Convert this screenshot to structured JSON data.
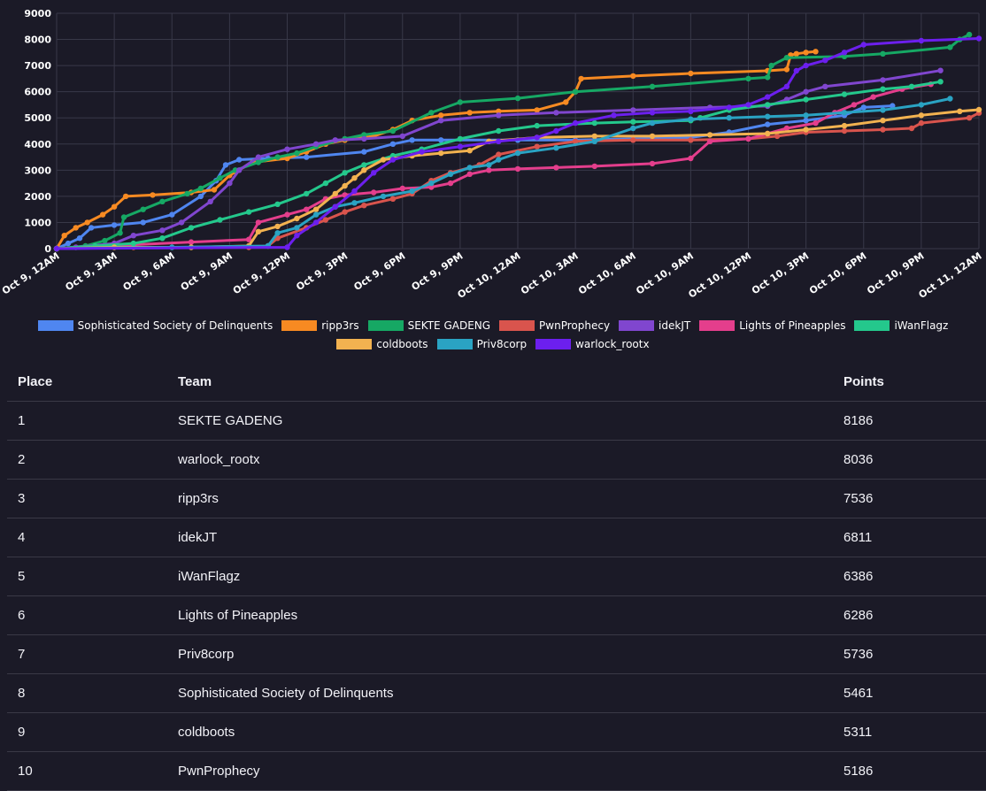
{
  "chart_data": {
    "type": "line",
    "ylim": [
      0,
      9000
    ],
    "yticks": [
      0,
      1000,
      2000,
      3000,
      4000,
      5000,
      6000,
      7000,
      8000,
      9000
    ],
    "xlim": [
      0,
      48
    ],
    "x_unit": "hours since Oct 9, 12AM",
    "xtick_labels": [
      "Oct 9, 12AM",
      "Oct 9, 3AM",
      "Oct 9, 6AM",
      "Oct 9, 9AM",
      "Oct 9, 12PM",
      "Oct 9, 3PM",
      "Oct 9, 6PM",
      "Oct 9, 9PM",
      "Oct 10, 12AM",
      "Oct 10, 3AM",
      "Oct 10, 6AM",
      "Oct 10, 9AM",
      "Oct 10, 12PM",
      "Oct 10, 3PM",
      "Oct 10, 6PM",
      "Oct 10, 9PM",
      "Oct 11, 12AM"
    ],
    "series": [
      {
        "name": "Sophisticated Society of Delinquents",
        "color": "#4f86f0",
        "points": [
          [
            0,
            0
          ],
          [
            0.6,
            200
          ],
          [
            1.2,
            400
          ],
          [
            1.8,
            800
          ],
          [
            3,
            900
          ],
          [
            4.5,
            1000
          ],
          [
            6,
            1300
          ],
          [
            7.5,
            2000
          ],
          [
            8.3,
            2600
          ],
          [
            8.8,
            3200
          ],
          [
            9.5,
            3400
          ],
          [
            11,
            3450
          ],
          [
            13,
            3500
          ],
          [
            16,
            3700
          ],
          [
            17.5,
            4000
          ],
          [
            18.5,
            4150
          ],
          [
            20,
            4150
          ],
          [
            24,
            4150
          ],
          [
            27,
            4150
          ],
          [
            30,
            4200
          ],
          [
            33,
            4250
          ],
          [
            35,
            4450
          ],
          [
            37,
            4750
          ],
          [
            39,
            4900
          ],
          [
            41,
            5100
          ],
          [
            42,
            5400
          ],
          [
            43.5,
            5461
          ]
        ]
      },
      {
        "name": "ripp3rs",
        "color": "#f78a22",
        "points": [
          [
            0,
            0
          ],
          [
            0.4,
            500
          ],
          [
            1,
            800
          ],
          [
            1.6,
            1000
          ],
          [
            2.4,
            1300
          ],
          [
            3,
            1600
          ],
          [
            3.6,
            2000
          ],
          [
            5,
            2050
          ],
          [
            7,
            2150
          ],
          [
            8.2,
            2250
          ],
          [
            9,
            2800
          ],
          [
            10.2,
            3300
          ],
          [
            12,
            3450
          ],
          [
            13,
            3700
          ],
          [
            14,
            4000
          ],
          [
            15,
            4150
          ],
          [
            16.5,
            4300
          ],
          [
            17.5,
            4550
          ],
          [
            18.5,
            4900
          ],
          [
            20,
            5100
          ],
          [
            21.5,
            5200
          ],
          [
            23,
            5250
          ],
          [
            25,
            5300
          ],
          [
            26.5,
            5600
          ],
          [
            27,
            6000
          ],
          [
            27.3,
            6500
          ],
          [
            30,
            6600
          ],
          [
            33,
            6700
          ],
          [
            37,
            6800
          ],
          [
            38,
            6850
          ],
          [
            38.2,
            7400
          ],
          [
            38.5,
            7450
          ],
          [
            39,
            7500
          ],
          [
            39.5,
            7536
          ]
        ]
      },
      {
        "name": "SEKTE GADENG",
        "color": "#16a864",
        "points": [
          [
            0,
            0
          ],
          [
            1.5,
            100
          ],
          [
            2.5,
            300
          ],
          [
            3.3,
            600
          ],
          [
            3.5,
            1200
          ],
          [
            4.5,
            1500
          ],
          [
            5.5,
            1800
          ],
          [
            6.8,
            2100
          ],
          [
            7.5,
            2300
          ],
          [
            8.5,
            2700
          ],
          [
            9.3,
            3000
          ],
          [
            10.5,
            3300
          ],
          [
            11.5,
            3500
          ],
          [
            12.5,
            3650
          ],
          [
            13.5,
            3900
          ],
          [
            15,
            4200
          ],
          [
            16,
            4350
          ],
          [
            17.5,
            4500
          ],
          [
            19.5,
            5200
          ],
          [
            21,
            5600
          ],
          [
            24,
            5750
          ],
          [
            27,
            6000
          ],
          [
            31,
            6200
          ],
          [
            36,
            6500
          ],
          [
            37,
            6550
          ],
          [
            37.2,
            7000
          ],
          [
            38,
            7300
          ],
          [
            41,
            7350
          ],
          [
            43,
            7450
          ],
          [
            46.5,
            7700
          ],
          [
            47,
            8000
          ],
          [
            47.5,
            8186
          ]
        ]
      },
      {
        "name": "PwnProphecy",
        "color": "#d9544d",
        "points": [
          [
            0,
            0
          ],
          [
            4,
            50
          ],
          [
            10,
            50
          ],
          [
            11,
            100
          ],
          [
            11.5,
            400
          ],
          [
            13,
            800
          ],
          [
            14,
            1100
          ],
          [
            15,
            1400
          ],
          [
            16,
            1650
          ],
          [
            17.5,
            1900
          ],
          [
            18.5,
            2100
          ],
          [
            19.5,
            2600
          ],
          [
            20.5,
            2900
          ],
          [
            22,
            3200
          ],
          [
            23,
            3600
          ],
          [
            25,
            3900
          ],
          [
            27,
            4100
          ],
          [
            30,
            4150
          ],
          [
            33,
            4150
          ],
          [
            36,
            4200
          ],
          [
            37.5,
            4300
          ],
          [
            39,
            4450
          ],
          [
            41,
            4500
          ],
          [
            43,
            4550
          ],
          [
            44.5,
            4600
          ],
          [
            45,
            4800
          ],
          [
            47.5,
            5000
          ],
          [
            48,
            5186
          ]
        ]
      },
      {
        "name": "idekJT",
        "color": "#8046cf",
        "points": [
          [
            0,
            0
          ],
          [
            1,
            50
          ],
          [
            3,
            200
          ],
          [
            4,
            500
          ],
          [
            5.5,
            700
          ],
          [
            6.5,
            1000
          ],
          [
            8,
            1800
          ],
          [
            9,
            2500
          ],
          [
            9.5,
            3000
          ],
          [
            10.5,
            3500
          ],
          [
            12,
            3800
          ],
          [
            13.5,
            4000
          ],
          [
            14.5,
            4150
          ],
          [
            16,
            4200
          ],
          [
            18,
            4300
          ],
          [
            20,
            4900
          ],
          [
            23,
            5100
          ],
          [
            26,
            5200
          ],
          [
            30,
            5300
          ],
          [
            34,
            5400
          ],
          [
            37,
            5450
          ],
          [
            38,
            5700
          ],
          [
            39,
            6000
          ],
          [
            40,
            6200
          ],
          [
            43,
            6450
          ],
          [
            46,
            6811
          ]
        ]
      },
      {
        "name": "Lights of Pineapples",
        "color": "#e43e8c",
        "points": [
          [
            0,
            0
          ],
          [
            4,
            150
          ],
          [
            7,
            250
          ],
          [
            10,
            350
          ],
          [
            10.5,
            1000
          ],
          [
            12,
            1300
          ],
          [
            13,
            1500
          ],
          [
            14,
            1900
          ],
          [
            15,
            2050
          ],
          [
            16.5,
            2150
          ],
          [
            18,
            2300
          ],
          [
            19.5,
            2350
          ],
          [
            20.5,
            2500
          ],
          [
            21.5,
            2850
          ],
          [
            22.5,
            3000
          ],
          [
            24,
            3050
          ],
          [
            26,
            3100
          ],
          [
            28,
            3150
          ],
          [
            31,
            3250
          ],
          [
            33,
            3450
          ],
          [
            34,
            4100
          ],
          [
            36,
            4200
          ],
          [
            37,
            4400
          ],
          [
            38,
            4600
          ],
          [
            39.5,
            4800
          ],
          [
            40.5,
            5200
          ],
          [
            41.5,
            5500
          ],
          [
            42.5,
            5800
          ],
          [
            44,
            6100
          ],
          [
            45.5,
            6286
          ]
        ]
      },
      {
        "name": "iWanFlagz",
        "color": "#24c88c",
        "points": [
          [
            0,
            0
          ],
          [
            2,
            100
          ],
          [
            4,
            200
          ],
          [
            5.5,
            400
          ],
          [
            7,
            800
          ],
          [
            8.5,
            1100
          ],
          [
            10,
            1400
          ],
          [
            11.5,
            1700
          ],
          [
            13,
            2100
          ],
          [
            14,
            2500
          ],
          [
            15,
            2900
          ],
          [
            16,
            3200
          ],
          [
            17.5,
            3550
          ],
          [
            19,
            3800
          ],
          [
            21,
            4200
          ],
          [
            23,
            4500
          ],
          [
            25,
            4700
          ],
          [
            28,
            4800
          ],
          [
            30,
            4850
          ],
          [
            33,
            4900
          ],
          [
            33.5,
            5000
          ],
          [
            35,
            5300
          ],
          [
            37,
            5500
          ],
          [
            39,
            5700
          ],
          [
            41,
            5900
          ],
          [
            43,
            6100
          ],
          [
            44.5,
            6200
          ],
          [
            46,
            6386
          ]
        ]
      },
      {
        "name": "coldboots",
        "color": "#f2b250",
        "points": [
          [
            0,
            0
          ],
          [
            3,
            50
          ],
          [
            7,
            50
          ],
          [
            10,
            100
          ],
          [
            10.5,
            650
          ],
          [
            11.5,
            850
          ],
          [
            12.5,
            1150
          ],
          [
            13.5,
            1500
          ],
          [
            14.5,
            2100
          ],
          [
            15,
            2400
          ],
          [
            15.5,
            2700
          ],
          [
            16,
            3000
          ],
          [
            17,
            3400
          ],
          [
            18.5,
            3550
          ],
          [
            20,
            3650
          ],
          [
            21.5,
            3750
          ],
          [
            22.5,
            4100
          ],
          [
            25,
            4250
          ],
          [
            28,
            4300
          ],
          [
            31,
            4300
          ],
          [
            34,
            4350
          ],
          [
            37,
            4400
          ],
          [
            39,
            4550
          ],
          [
            41,
            4700
          ],
          [
            43,
            4900
          ],
          [
            45,
            5100
          ],
          [
            47,
            5250
          ],
          [
            48,
            5311
          ]
        ]
      },
      {
        "name": "Priv8corp",
        "color": "#2aa3c3",
        "points": [
          [
            0,
            0
          ],
          [
            6,
            50
          ],
          [
            11,
            100
          ],
          [
            11.5,
            600
          ],
          [
            12.5,
            800
          ],
          [
            13.5,
            1300
          ],
          [
            14.5,
            1600
          ],
          [
            15.5,
            1750
          ],
          [
            17,
            2000
          ],
          [
            18.5,
            2200
          ],
          [
            19.5,
            2500
          ],
          [
            20.5,
            2850
          ],
          [
            21.5,
            3100
          ],
          [
            22.5,
            3200
          ],
          [
            23,
            3400
          ],
          [
            24,
            3650
          ],
          [
            26,
            3850
          ],
          [
            28,
            4100
          ],
          [
            30,
            4600
          ],
          [
            31,
            4800
          ],
          [
            33,
            4950
          ],
          [
            35,
            5000
          ],
          [
            37,
            5050
          ],
          [
            39,
            5100
          ],
          [
            41,
            5200
          ],
          [
            43,
            5300
          ],
          [
            45,
            5500
          ],
          [
            46.5,
            5736
          ]
        ]
      },
      {
        "name": "warlock_rootx",
        "color": "#6c1fee",
        "points": [
          [
            0,
            0
          ],
          [
            12,
            50
          ],
          [
            12.5,
            500
          ],
          [
            13.5,
            1000
          ],
          [
            14.5,
            1600
          ],
          [
            15.5,
            2200
          ],
          [
            16.5,
            2900
          ],
          [
            17.5,
            3400
          ],
          [
            19,
            3700
          ],
          [
            21,
            3900
          ],
          [
            23,
            4100
          ],
          [
            25,
            4250
          ],
          [
            26,
            4500
          ],
          [
            27,
            4800
          ],
          [
            29,
            5100
          ],
          [
            31,
            5200
          ],
          [
            33,
            5250
          ],
          [
            35,
            5400
          ],
          [
            36,
            5500
          ],
          [
            37,
            5800
          ],
          [
            38,
            6200
          ],
          [
            38.5,
            6800
          ],
          [
            39,
            7000
          ],
          [
            40,
            7200
          ],
          [
            41,
            7500
          ],
          [
            42,
            7800
          ],
          [
            45,
            7950
          ],
          [
            48,
            8036
          ]
        ]
      }
    ]
  },
  "leaderboard": {
    "headers": {
      "place": "Place",
      "team": "Team",
      "points": "Points"
    },
    "rows": [
      {
        "place": "1",
        "team": "SEKTE GADENG",
        "points": "8186"
      },
      {
        "place": "2",
        "team": "warlock_rootx",
        "points": "8036"
      },
      {
        "place": "3",
        "team": "ripp3rs",
        "points": "7536"
      },
      {
        "place": "4",
        "team": "idekJT",
        "points": "6811"
      },
      {
        "place": "5",
        "team": "iWanFlagz",
        "points": "6386"
      },
      {
        "place": "6",
        "team": "Lights of Pineapples",
        "points": "6286"
      },
      {
        "place": "7",
        "team": "Priv8corp",
        "points": "5736"
      },
      {
        "place": "8",
        "team": "Sophisticated Society of Delinquents",
        "points": "5461"
      },
      {
        "place": "9",
        "team": "coldboots",
        "points": "5311"
      },
      {
        "place": "10",
        "team": "PwnProphecy",
        "points": "5186"
      }
    ]
  }
}
